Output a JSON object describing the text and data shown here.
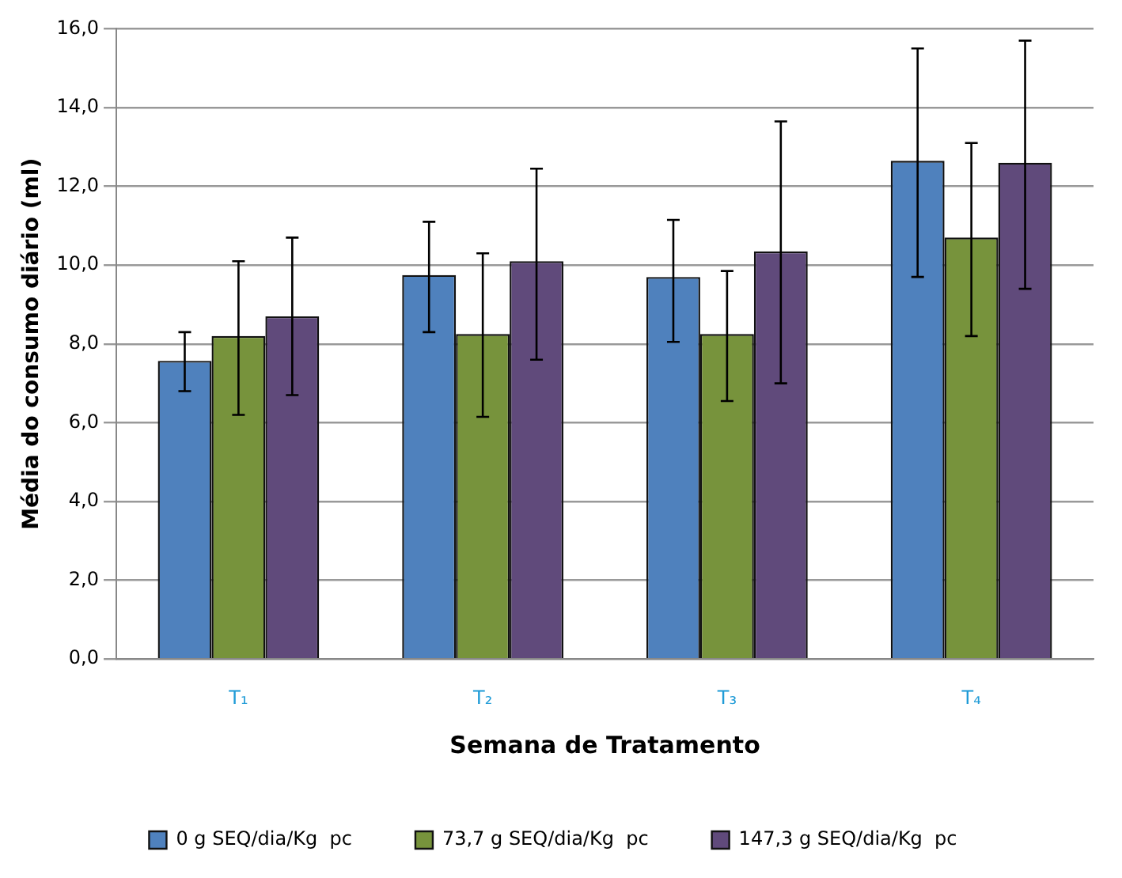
{
  "chart_data": {
    "type": "bar",
    "xlabel": "Semana de Tratamento",
    "ylabel": "Média do consumo diário (ml)",
    "categories": [
      "T₁",
      "T₂",
      "T₃",
      "T₄"
    ],
    "series": [
      {
        "name": "0 g SEQ/dia/Kg  pc",
        "color": "#4f81bd",
        "values": [
          7.57,
          9.75,
          9.7,
          12.65
        ],
        "errors": [
          [
            6.8,
            8.3
          ],
          [
            8.3,
            11.1
          ],
          [
            8.05,
            11.15
          ],
          [
            9.7,
            15.5
          ]
        ]
      },
      {
        "name": "73,7 g SEQ/dia/Kg  pc",
        "color": "#77933c",
        "values": [
          8.2,
          8.25,
          8.25,
          10.7
        ],
        "errors": [
          [
            6.2,
            10.1
          ],
          [
            6.15,
            10.3
          ],
          [
            6.55,
            9.85
          ],
          [
            8.2,
            13.1
          ]
        ]
      },
      {
        "name": "147,3 g SEQ/dia/Kg  pc",
        "color": "#604a7b",
        "values": [
          8.7,
          10.1,
          10.35,
          12.6
        ],
        "errors": [
          [
            6.7,
            10.7
          ],
          [
            7.6,
            12.45
          ],
          [
            7.0,
            13.65
          ],
          [
            9.4,
            15.7
          ]
        ]
      }
    ],
    "ylim": [
      0,
      16
    ],
    "yticks": [
      {
        "value": 0,
        "label": "0,0"
      },
      {
        "value": 2,
        "label": "2,0"
      },
      {
        "value": 4,
        "label": "4,0"
      },
      {
        "value": 6,
        "label": "6,0"
      },
      {
        "value": 8,
        "label": "8,0"
      },
      {
        "value": 10,
        "label": "10,0"
      },
      {
        "value": 12,
        "label": "12,0"
      },
      {
        "value": 14,
        "label": "14,0"
      },
      {
        "value": 16,
        "label": "16,0"
      }
    ],
    "grid": "y",
    "legend": "bottom"
  }
}
